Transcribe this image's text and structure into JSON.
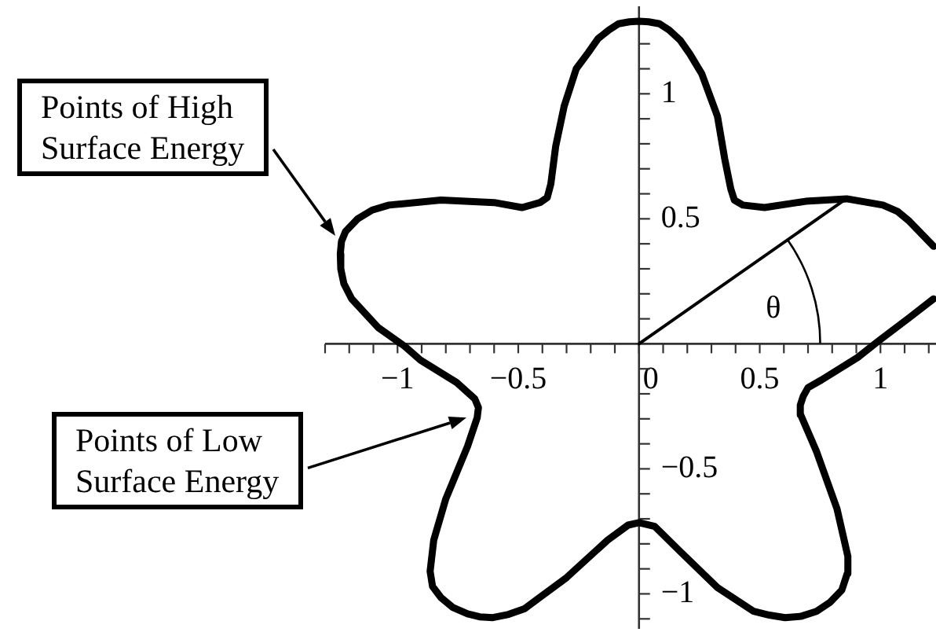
{
  "chart_data": {
    "type": "line",
    "xlim": [
      -1.3,
      1.23
    ],
    "ylim": [
      -1.14,
      1.35
    ],
    "xticks": [
      {
        "value": -1.3,
        "label": null
      },
      {
        "value": -1.2,
        "label": null
      },
      {
        "value": -1.1,
        "label": null
      },
      {
        "value": -1,
        "label": "−1"
      },
      {
        "value": -0.9,
        "label": null
      },
      {
        "value": -0.8,
        "label": null
      },
      {
        "value": -0.7,
        "label": null
      },
      {
        "value": -0.6,
        "label": null
      },
      {
        "value": -0.5,
        "label": "−0.5"
      },
      {
        "value": -0.4,
        "label": null
      },
      {
        "value": -0.3,
        "label": null
      },
      {
        "value": -0.2,
        "label": null
      },
      {
        "value": -0.1,
        "label": null
      },
      0,
      {
        "value": 0.1,
        "label": null
      },
      {
        "value": 0.2,
        "label": null
      },
      {
        "value": 0.3,
        "label": null
      },
      {
        "value": 0.4,
        "label": null
      },
      0.5,
      {
        "value": 0.6,
        "label": null
      },
      {
        "value": 0.7,
        "label": null
      },
      {
        "value": 0.8,
        "label": null
      },
      {
        "value": 0.9,
        "label": null
      },
      1,
      {
        "value": 1.1,
        "label": null
      },
      {
        "value": 1.2,
        "label": null
      }
    ],
    "yticks": [
      {
        "value": -1.1,
        "label": null
      },
      {
        "value": -1,
        "label": "−1"
      },
      {
        "value": -0.9,
        "label": null
      },
      {
        "value": -0.8,
        "label": null
      },
      {
        "value": -0.7,
        "label": null
      },
      {
        "value": -0.6,
        "label": null
      },
      {
        "value": -0.5,
        "label": "−0.5"
      },
      {
        "value": -0.4,
        "label": null
      },
      {
        "value": -0.3,
        "label": null
      },
      {
        "value": -0.2,
        "label": null
      },
      {
        "value": -0.1,
        "label": null
      },
      {
        "value": 0.1,
        "label": null
      },
      {
        "value": 0.2,
        "label": null
      },
      {
        "value": 0.3,
        "label": null
      },
      {
        "value": 0.4,
        "label": null
      },
      0.5,
      {
        "value": 0.6,
        "label": null
      },
      {
        "value": 0.7,
        "label": null
      },
      {
        "value": 0.8,
        "label": null
      },
      {
        "value": 0.9,
        "label": null
      },
      1,
      {
        "value": 1.1,
        "label": null
      },
      {
        "value": 1.2,
        "label": null
      }
    ],
    "marker": "none",
    "series": [
      {
        "color": "#000000",
        "x": [
          1.22,
          1.12,
          1.07,
          1.01,
          0.86,
          0.69,
          0.52,
          0.43,
          0.395,
          0.38,
          0.355,
          0.325,
          0.26,
          0.21,
          0.17,
          0.125,
          0.085,
          0.04,
          0,
          -0.04,
          -0.085,
          -0.125,
          -0.17,
          -0.21,
          -0.26,
          -0.31,
          -0.345,
          -0.365,
          -0.38,
          -0.41,
          -0.485,
          -0.6,
          -0.82,
          -1.035,
          -1.105,
          -1.165,
          -1.215,
          -1.232,
          -1.237,
          -1.235,
          -1.222,
          -1.19,
          -1.08,
          -0.97,
          -0.905,
          -0.755,
          -0.68,
          -0.665,
          -0.67,
          -0.71,
          -0.8,
          -0.85,
          -0.865,
          -0.855,
          -0.82,
          -0.77,
          -0.71,
          -0.66,
          -0.605,
          -0.54,
          -0.475,
          -0.3,
          -0.13,
          -0.045,
          0,
          0.065,
          0.17,
          0.325,
          0.475,
          0.54,
          0.605,
          0.67,
          0.735,
          0.79,
          0.84,
          0.862,
          0.865,
          0.82,
          0.735,
          0.67,
          0.668,
          0.68,
          0.7,
          0.755,
          0.905,
          0.99,
          1.12,
          1.22
        ],
        "values": [
          0.39,
          0.49,
          0.53,
          0.555,
          0.58,
          0.57,
          0.545,
          0.555,
          0.575,
          0.62,
          0.74,
          0.91,
          1.08,
          1.16,
          1.215,
          1.255,
          1.28,
          1.288,
          1.29,
          1.288,
          1.28,
          1.255,
          1.22,
          1.165,
          1.1,
          0.95,
          0.79,
          0.64,
          0.585,
          0.565,
          0.545,
          0.565,
          0.575,
          0.555,
          0.535,
          0.5,
          0.45,
          0.41,
          0.36,
          0.3,
          0.24,
          0.18,
          0.065,
          -0.01,
          -0.065,
          -0.155,
          -0.22,
          -0.255,
          -0.295,
          -0.41,
          -0.62,
          -0.785,
          -0.91,
          -0.97,
          -1.015,
          -1.055,
          -1.08,
          -1.092,
          -1.095,
          -1.082,
          -1.06,
          -0.935,
          -0.785,
          -0.725,
          -0.715,
          -0.73,
          -0.83,
          -0.975,
          -1.07,
          -1.085,
          -1.095,
          -1.09,
          -1.07,
          -1.035,
          -0.985,
          -0.92,
          -0.85,
          -0.66,
          -0.43,
          -0.285,
          -0.245,
          -0.21,
          -0.175,
          -0.145,
          -0.055,
          0.01,
          0.105,
          0.18
        ]
      },
      {
        "color": "#000000",
        "x": [
          0,
          0.852
        ],
        "values": [
          0,
          0.576
        ]
      }
    ],
    "annotations": [
      "θ",
      "Points of High Surface Energy",
      "Points of Low Surface Energy"
    ]
  }
}
